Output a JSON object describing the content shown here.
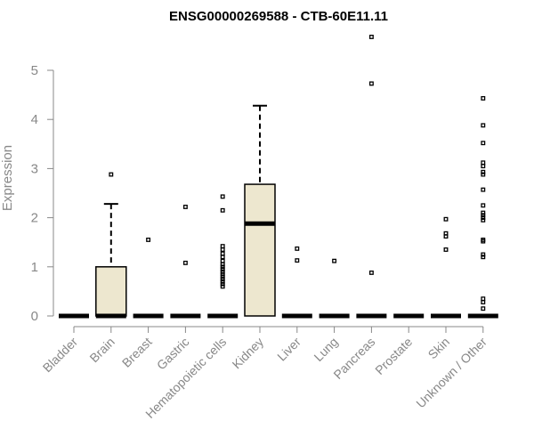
{
  "chart_data": {
    "type": "boxplot",
    "title": "ENSG00000269588 - CTB-60E11.11",
    "xlabel": "",
    "ylabel": "Expression",
    "ylim": [
      0,
      5.6
    ],
    "yticks": [
      0,
      1,
      2,
      3,
      4,
      5
    ],
    "grid": false,
    "legend": "none",
    "colors": {
      "box_fill": "#ede7cf",
      "box_stroke": "#000000",
      "axis": "#888888"
    },
    "categories": [
      "Bladder",
      "Brain",
      "Breast",
      "Gastric",
      "Hematopoietic cells",
      "Kidney",
      "Liver",
      "Lung",
      "Pancreas",
      "Prostate",
      "Skin",
      "Unknown / Other"
    ],
    "boxes": [
      {
        "category": "Bladder",
        "q1": 0,
        "median": 0,
        "q3": 0,
        "whisker_low": 0,
        "whisker_high": 0,
        "outliers": []
      },
      {
        "category": "Brain",
        "q1": 0,
        "median": 0,
        "q3": 1.0,
        "whisker_low": 0,
        "whisker_high": 2.28,
        "outliers": [
          2.88
        ]
      },
      {
        "category": "Breast",
        "q1": 0,
        "median": 0,
        "q3": 0,
        "whisker_low": 0,
        "whisker_high": 0,
        "outliers": [
          1.55
        ]
      },
      {
        "category": "Gastric",
        "q1": 0,
        "median": 0,
        "q3": 0,
        "whisker_low": 0,
        "whisker_high": 0,
        "outliers": [
          2.22,
          1.08
        ]
      },
      {
        "category": "Hematopoietic cells",
        "q1": 0,
        "median": 0,
        "q3": 0,
        "whisker_low": 0,
        "whisker_high": 0,
        "outliers": [
          2.43,
          2.15,
          1.42,
          1.35,
          1.27,
          1.2,
          1.12,
          1.05,
          1.0,
          0.95,
          0.9,
          0.85,
          0.8,
          0.75,
          0.7,
          0.65,
          0.6
        ]
      },
      {
        "category": "Kidney",
        "q1": 0,
        "median": 1.88,
        "q3": 2.68,
        "whisker_low": 0,
        "whisker_high": 4.28,
        "outliers": []
      },
      {
        "category": "Liver",
        "q1": 0,
        "median": 0,
        "q3": 0,
        "whisker_low": 0,
        "whisker_high": 0,
        "outliers": [
          1.37,
          1.13
        ]
      },
      {
        "category": "Lung",
        "q1": 0,
        "median": 0,
        "q3": 0,
        "whisker_low": 0,
        "whisker_high": 0,
        "outliers": [
          1.12
        ]
      },
      {
        "category": "Pancreas",
        "q1": 0,
        "median": 0,
        "q3": 0,
        "whisker_low": 0,
        "whisker_high": 0,
        "outliers": [
          5.68,
          4.73,
          0.88
        ]
      },
      {
        "category": "Prostate",
        "q1": 0,
        "median": 0,
        "q3": 0,
        "whisker_low": 0,
        "whisker_high": 0,
        "outliers": []
      },
      {
        "category": "Skin",
        "q1": 0,
        "median": 0,
        "q3": 0,
        "whisker_low": 0,
        "whisker_high": 0,
        "outliers": [
          1.97,
          1.68,
          1.62,
          1.35
        ]
      },
      {
        "category": "Unknown / Other",
        "q1": 0,
        "median": 0,
        "q3": 0,
        "whisker_low": 0,
        "whisker_high": 0,
        "outliers": [
          4.43,
          3.88,
          3.52,
          3.12,
          3.05,
          2.93,
          2.88,
          2.57,
          2.25,
          2.1,
          2.05,
          2.0,
          1.95,
          1.55,
          1.52,
          1.25,
          1.2,
          0.35,
          0.28,
          0.15
        ]
      }
    ]
  }
}
